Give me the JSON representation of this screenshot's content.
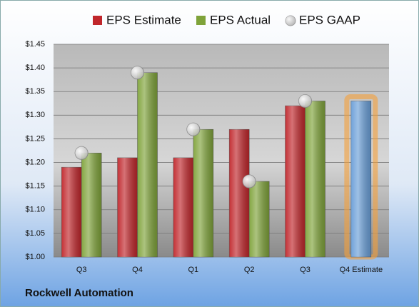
{
  "chart_data": {
    "type": "bar",
    "title": "Rockwell Automation",
    "categories": [
      "Q3",
      "Q4",
      "Q1",
      "Q2",
      "Q3",
      "Q4 Estimate"
    ],
    "series": [
      {
        "name": "EPS Estimate",
        "color": "#c0262b",
        "point_colors": [
          "#c0262b",
          "#c0262b",
          "#c0262b",
          "#c0262b",
          "#c0262b",
          "#6a9fd8"
        ],
        "values": [
          1.19,
          1.21,
          1.21,
          1.27,
          1.32,
          1.33
        ]
      },
      {
        "name": "EPS Actual",
        "color": "#7fa33a",
        "values": [
          1.22,
          1.39,
          1.27,
          1.16,
          1.33,
          null
        ]
      },
      {
        "name": "EPS GAAP",
        "color": "#b8b8b8",
        "marker": "circle",
        "values": [
          1.22,
          1.39,
          1.27,
          1.16,
          1.33,
          null
        ]
      }
    ],
    "ylim": [
      1.0,
      1.45
    ],
    "yticks": [
      {
        "value": 1.0,
        "label": "$1.00"
      },
      {
        "value": 1.05,
        "label": "$1.05"
      },
      {
        "value": 1.1,
        "label": "$1.10"
      },
      {
        "value": 1.15,
        "label": "$1.15"
      },
      {
        "value": 1.2,
        "label": "$1.20"
      },
      {
        "value": 1.25,
        "label": "$1.25"
      },
      {
        "value": 1.3,
        "label": "$1.30"
      },
      {
        "value": 1.35,
        "label": "$1.35"
      },
      {
        "value": 1.4,
        "label": "$1.40"
      },
      {
        "value": 1.45,
        "label": "$1.45"
      }
    ],
    "grid": true,
    "legend": "top"
  }
}
